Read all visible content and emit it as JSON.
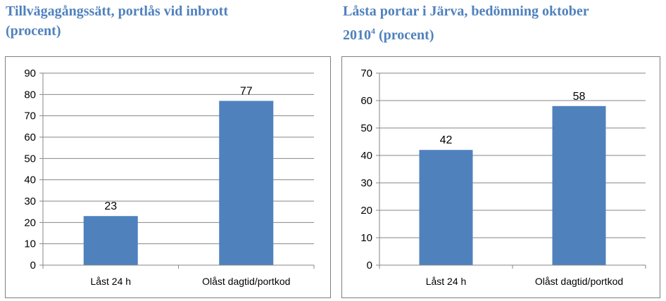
{
  "left": {
    "title_line1": "Tillvägagångssätt, portlås vid inbrott",
    "title_line2": "(procent)"
  },
  "right": {
    "title_line1": "Låsta portar i Järva, bedömning oktober",
    "title_line2_main": "2010",
    "title_line2_sup": "4",
    "title_line2_rest": " (procent)"
  },
  "colors": {
    "bar": "#4f81bd",
    "title": "#4f81bd",
    "grid": "#868686"
  },
  "chart_data": [
    {
      "type": "bar",
      "categories": [
        "Låst 24 h",
        "Olåst dagtid/portkod"
      ],
      "values": [
        23,
        77
      ],
      "ylim": [
        0,
        90
      ],
      "ystep": 10,
      "grid": true
    },
    {
      "type": "bar",
      "categories": [
        "Låst 24 h",
        "Olåst dagtid/portkod"
      ],
      "values": [
        42,
        58
      ],
      "ylim": [
        0,
        70
      ],
      "ystep": 10,
      "grid": true
    }
  ]
}
